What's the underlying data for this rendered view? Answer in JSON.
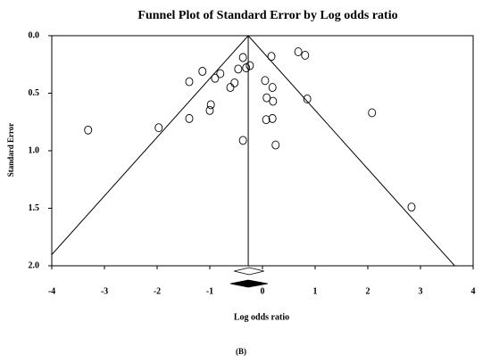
{
  "chart_data": {
    "type": "funnel",
    "title": "Funnel Plot of Standard Error by Log odds ratio",
    "x_label": "Log odds ratio",
    "y_label": "Standard Error",
    "caption": "(B)",
    "x": [
      -3.31,
      -1.97,
      -1.39,
      -1.39,
      -1.14,
      -0.98,
      -1.0,
      -0.9,
      -0.8,
      -0.61,
      -0.53,
      -0.46,
      -0.37,
      -0.31,
      -0.24,
      -0.37,
      0.17,
      0.05,
      0.19,
      0.08,
      0.2,
      0.07,
      0.19,
      0.25,
      0.68,
      0.81,
      0.85,
      2.08,
      2.83
    ],
    "values": [
      0.82,
      0.8,
      0.72,
      0.4,
      0.31,
      0.6,
      0.65,
      0.37,
      0.33,
      0.45,
      0.41,
      0.29,
      0.19,
      0.28,
      0.26,
      0.91,
      0.18,
      0.39,
      0.45,
      0.54,
      0.57,
      0.73,
      0.72,
      0.95,
      0.14,
      0.17,
      0.55,
      0.67,
      1.49
    ],
    "funnel": {
      "center": -0.27,
      "left_end": [
        -4.19,
        2.0
      ],
      "right_end": [
        3.65,
        2.0
      ]
    },
    "diamonds": [
      {
        "center": -0.25,
        "lower": -0.54,
        "upper": 0.03,
        "color": "#ffffff"
      },
      {
        "center": -0.27,
        "lower": -0.61,
        "upper": 0.1,
        "color": "#000000"
      }
    ],
    "xlim": [
      -4,
      4
    ],
    "xticks": [
      -4,
      -3,
      -2,
      -1,
      0,
      1,
      2,
      3,
      4
    ],
    "ylim": [
      0,
      2
    ],
    "y_inverted": true,
    "yticks": [
      {
        "value": 0,
        "label": "0.0"
      },
      {
        "value": 0.5,
        "label": "0.5"
      },
      {
        "value": 1,
        "label": "1.0"
      },
      {
        "value": 1.5,
        "label": "1.5"
      },
      {
        "value": 2,
        "label": "2.0"
      }
    ]
  }
}
